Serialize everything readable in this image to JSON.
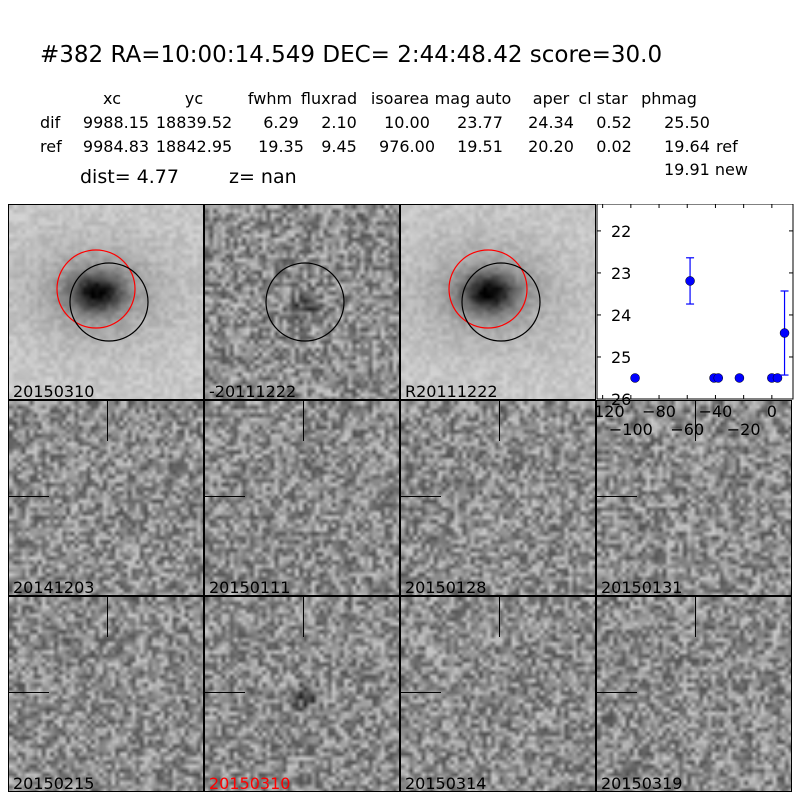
{
  "header": {
    "title": "#382   RA=10:00:14.549 DEC= 2:44:48.42      score=30.0",
    "columns": [
      "xc",
      "yc",
      "fwhm",
      "fluxrad",
      "isoarea",
      "mag auto",
      "aper",
      "cl star",
      "phmag"
    ],
    "rows": [
      {
        "label": "dif",
        "values": [
          "9988.15",
          "18839.52",
          "6.29",
          "2.10",
          "10.00",
          "23.77",
          "24.34",
          "0.52",
          "25.50"
        ],
        "extra": ""
      },
      {
        "label": "ref",
        "values": [
          "9984.83",
          "18842.95",
          "19.35",
          "9.45",
          "976.00",
          "19.51",
          "20.20",
          "0.02",
          "19.64"
        ],
        "extra": "ref"
      }
    ],
    "new_phmag": "19.91 new",
    "dist": "dist=  4.77",
    "z": "z=   nan"
  },
  "stamps": [
    {
      "label": "20150310",
      "circles": true
    },
    {
      "label": "-20111222",
      "circles": "black"
    },
    {
      "label": "R20111222",
      "circles": true
    },
    {
      "label": "20141203"
    },
    {
      "label": "20150111"
    },
    {
      "label": "20150128"
    },
    {
      "label": "20150131"
    },
    {
      "label": "20150215"
    },
    {
      "label": "20150310",
      "color": "#ff0000"
    },
    {
      "label": "20150314"
    },
    {
      "label": "20150319"
    }
  ],
  "chart_data": {
    "type": "scatter",
    "xlim": [
      -124,
      15
    ],
    "ylim": [
      26,
      21.36
    ],
    "y_inverted": true,
    "xticks": [
      -120,
      -100,
      -80,
      -60,
      -40,
      -20,
      0
    ],
    "yticks": [
      22,
      23,
      24,
      25,
      26
    ],
    "color": "#0000ff",
    "points": [
      {
        "x": -97,
        "y": 25.5,
        "err": 0.05
      },
      {
        "x": -58,
        "y": 23.19,
        "err": 0.55
      },
      {
        "x": -41,
        "y": 25.5,
        "err": 0.05
      },
      {
        "x": -38,
        "y": 25.5,
        "err": 0.05
      },
      {
        "x": -23,
        "y": 25.5,
        "err": 0.05
      },
      {
        "x": 0,
        "y": 25.5,
        "err": 0.05
      },
      {
        "x": 4,
        "y": 25.5,
        "err": 0.05
      },
      {
        "x": 9,
        "y": 24.43,
        "err": 1.0
      }
    ]
  }
}
